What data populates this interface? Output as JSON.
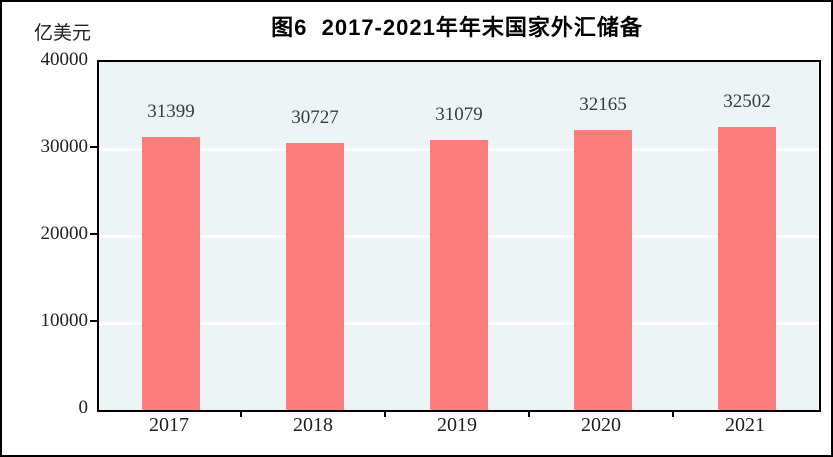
{
  "chart_data": {
    "type": "bar",
    "title": "图6  2017-2021年年末国家外汇储备",
    "ylabel": "亿美元",
    "xlabel": "",
    "categories": [
      "2017",
      "2018",
      "2019",
      "2020",
      "2021"
    ],
    "values": [
      31399,
      30727,
      31079,
      32165,
      32502
    ],
    "value_labels": [
      "31399",
      "30727",
      "31079",
      "32165",
      "32502"
    ],
    "ylim": [
      0,
      40000
    ],
    "yticks": [
      0,
      10000,
      20000,
      30000,
      40000
    ],
    "gridlines": [
      10000,
      20000,
      30000
    ],
    "legend": "none",
    "grid": "horizontal-white",
    "bar_color": "#fd7c7c",
    "plot_background": "#edf4f6",
    "grid_color": "#ffffff",
    "border_color": "#000000"
  }
}
